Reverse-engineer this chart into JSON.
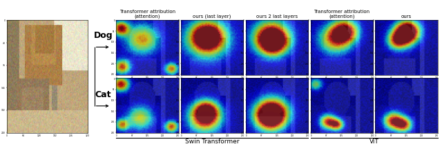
{
  "col_headers_swin": [
    "Transformer attribution\n(attention)",
    "ours (last layer)",
    "ours 2 last layers"
  ],
  "col_headers_vit": [
    "Transformer attribution\n(attention)",
    "ours"
  ],
  "section_labels": [
    "Swin Transformer",
    "ViT"
  ],
  "bg_color": "#ffffff",
  "fig_width": 6.4,
  "fig_height": 2.22,
  "dpi": 100,
  "header_fontsize": 5.0,
  "section_fontsize": 6.5,
  "arrow_label_fontsize": 9
}
